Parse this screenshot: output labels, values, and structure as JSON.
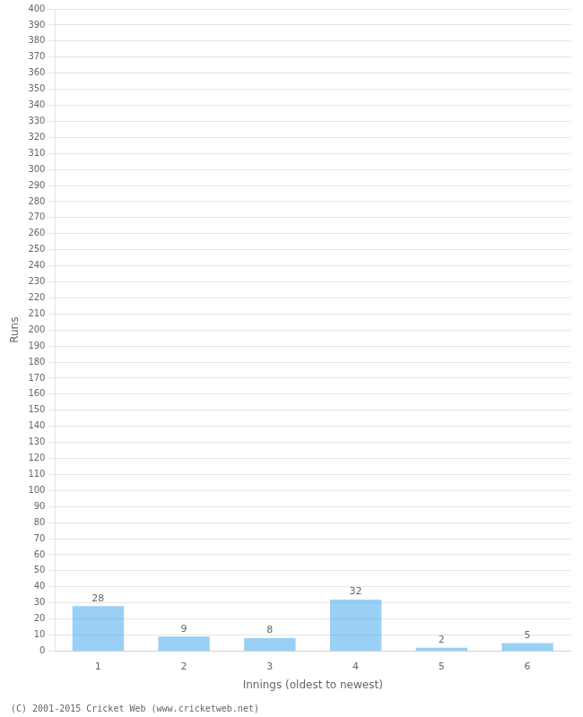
{
  "chart_data": {
    "type": "bar",
    "categories": [
      1,
      2,
      3,
      4,
      5,
      6
    ],
    "values": [
      28,
      9,
      8,
      32,
      2,
      5
    ],
    "x_label": "Innings (oldest to newest)",
    "y_label": "Runs",
    "ylim": [
      0,
      400
    ],
    "yticks": [
      0,
      10,
      20,
      30,
      40,
      50,
      60,
      70,
      80,
      90,
      100,
      110,
      120,
      130,
      140,
      150,
      160,
      170,
      180,
      190,
      200,
      210,
      220,
      230,
      240,
      250,
      260,
      270,
      280,
      290,
      300,
      310,
      320,
      330,
      340,
      350,
      360,
      370,
      380,
      390,
      400
    ],
    "grid": true,
    "data_labels": true,
    "annotations": [
      "(C) 2001-2015 Cricket Web (www.cricketweb.net)"
    ]
  }
}
